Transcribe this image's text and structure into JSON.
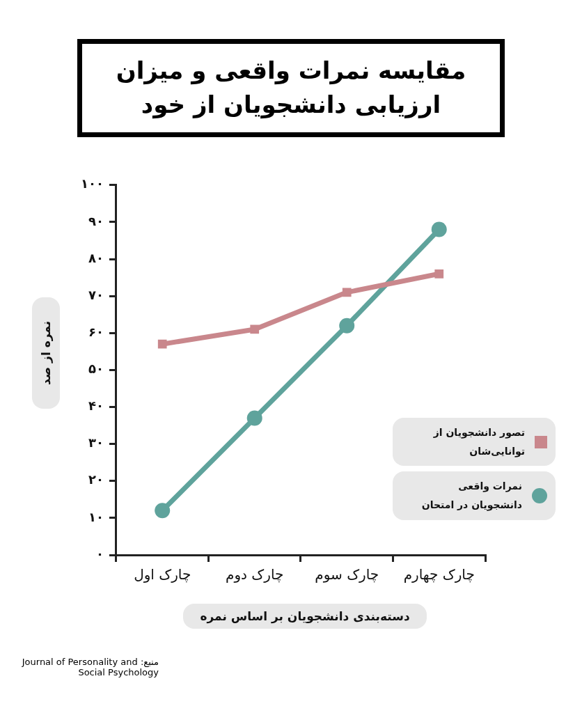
{
  "chart_data": {
    "type": "line",
    "title": "مقایسه نمرات واقعی و میزان ارزیابی دانشجویان از خود",
    "xlabel": "دسته‌بندی دانشجویان بر اساس نمره",
    "ylabel": "نمره از صد",
    "categories": [
      "چارک اول",
      "چارک دوم",
      "چارک سوم",
      "چارک چهارم"
    ],
    "series": [
      {
        "name": "تصور دانشجویان از توانایی‌شان",
        "color": "#c9878c",
        "marker": "square",
        "values": [
          57,
          61,
          71,
          76
        ]
      },
      {
        "name": "نمرات واقعی دانشجویان در امتحان",
        "color": "#5fa39c",
        "marker": "circle",
        "values": [
          12,
          37,
          62,
          88
        ]
      }
    ],
    "ylim": [
      0,
      100
    ],
    "yticks": [
      {
        "value": 0,
        "label": "۰"
      },
      {
        "value": 10,
        "label": "۱۰"
      },
      {
        "value": 20,
        "label": "۲۰"
      },
      {
        "value": 30,
        "label": "۳۰"
      },
      {
        "value": 40,
        "label": "۴۰"
      },
      {
        "value": 50,
        "label": "۵۰"
      },
      {
        "value": 60,
        "label": "۶۰"
      },
      {
        "value": 70,
        "label": "۷۰"
      },
      {
        "value": 80,
        "label": "۸۰"
      },
      {
        "value": 90,
        "label": "۹۰"
      },
      {
        "value": 100,
        "label": "۱۰۰"
      }
    ],
    "grid": false,
    "legend": "bottom right",
    "line_style": "solid",
    "annotations": [
      "منبع: Journal of Personality and Social Psychology"
    ]
  }
}
